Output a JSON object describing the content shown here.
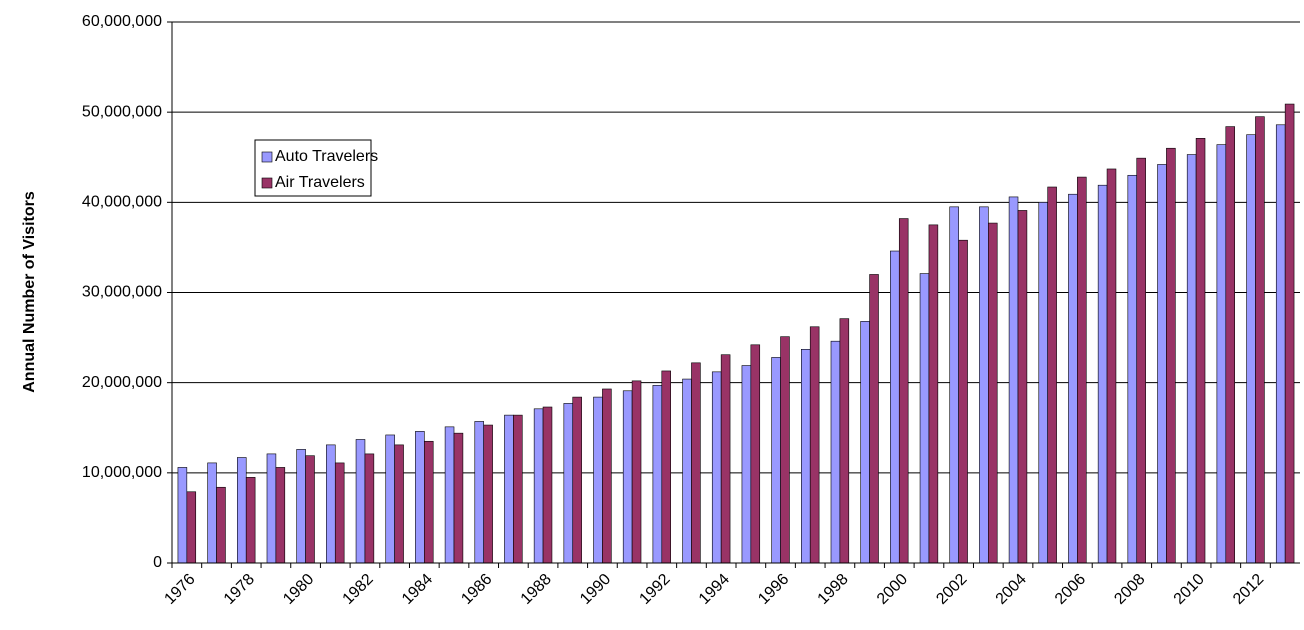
{
  "chart_data": {
    "type": "bar",
    "y_label": "Annual Number of Visitors",
    "categories": [
      "1976",
      null,
      "1978",
      null,
      "1980",
      null,
      "1982",
      null,
      "1984",
      null,
      "1986",
      null,
      "1988",
      null,
      "1990",
      null,
      "1992",
      null,
      "1994",
      null,
      "1996",
      null,
      "1998",
      null,
      "2000",
      null,
      "2002",
      null,
      "2004",
      null,
      "2006",
      null,
      "2008",
      null,
      "2010",
      null,
      "2012",
      null
    ],
    "series": [
      {
        "name": "Auto Travelers",
        "color": "#9999ff",
        "values": [
          10600000,
          11100000,
          11700000,
          12100000,
          12600000,
          13100000,
          13700000,
          14200000,
          14600000,
          15100000,
          15700000,
          16400000,
          17100000,
          17700000,
          18400000,
          19100000,
          19700000,
          20400000,
          21200000,
          21900000,
          22800000,
          23700000,
          24600000,
          26800000,
          34600000,
          32100000,
          39500000,
          39500000,
          40600000,
          40000000,
          40900000,
          41900000,
          43000000,
          44200000,
          45300000,
          46400000,
          47500000,
          48600000
        ]
      },
      {
        "name": "Air Travelers",
        "color": "#993366",
        "values": [
          7900000,
          8400000,
          9500000,
          10600000,
          11900000,
          11100000,
          12100000,
          13100000,
          13500000,
          14400000,
          15300000,
          16400000,
          17300000,
          18400000,
          19300000,
          20200000,
          21300000,
          22200000,
          23100000,
          24200000,
          25100000,
          26200000,
          27100000,
          32000000,
          38200000,
          37500000,
          35800000,
          37700000,
          39100000,
          41700000,
          42800000,
          43700000,
          44900000,
          46000000,
          47100000,
          48400000,
          49500000,
          50900000
        ]
      }
    ],
    "ylim": [
      0,
      60000000
    ],
    "yticks": [
      0,
      {
        "value": 10000000,
        "label": "10,000,000"
      },
      {
        "value": 20000000,
        "label": "20,000,000"
      },
      {
        "value": 30000000,
        "label": "30,000,000"
      },
      {
        "value": 40000000,
        "label": "40,000,000"
      },
      {
        "value": 50000000,
        "label": "50,000,000"
      },
      {
        "value": 60000000,
        "label": "60,000,000"
      }
    ],
    "grid": true,
    "legend": "upper-left"
  }
}
